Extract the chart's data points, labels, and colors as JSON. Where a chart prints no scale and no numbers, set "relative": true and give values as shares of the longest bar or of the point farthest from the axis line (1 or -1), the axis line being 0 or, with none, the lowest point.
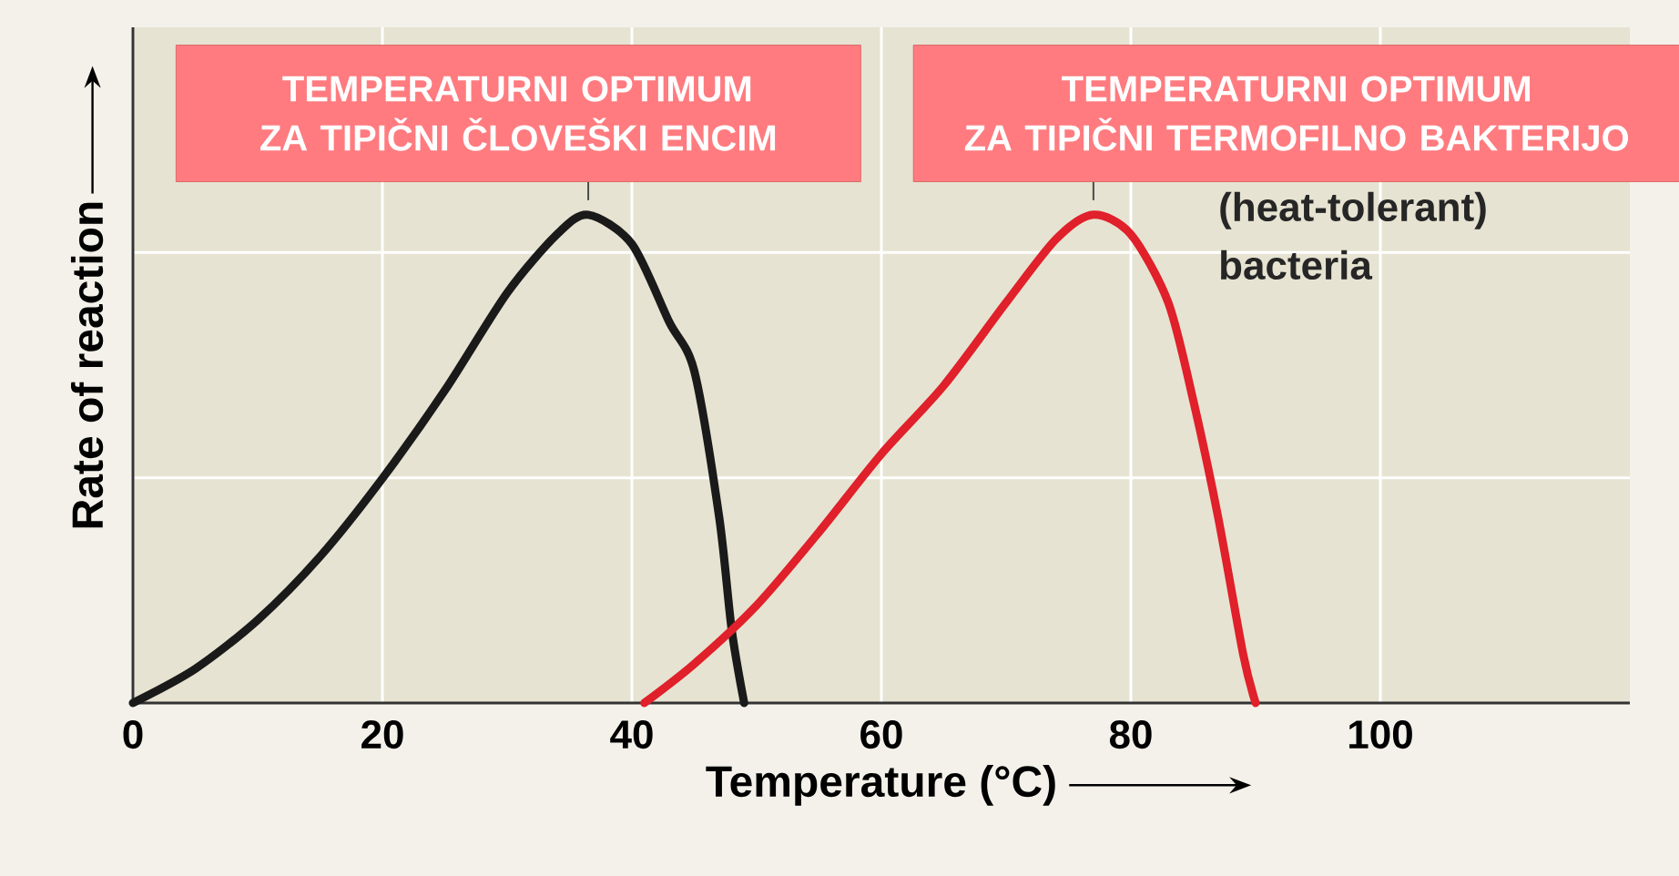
{
  "chart_data": {
    "type": "line",
    "xlabel": "Temperature (°C)",
    "ylabel": "Rate of reaction",
    "relative": true,
    "xlim": [
      0,
      120
    ],
    "xticks": [
      0,
      20,
      40,
      60,
      80,
      100
    ],
    "grid": true,
    "line_style": "solid",
    "series": [
      {
        "color": "#1a1a1a",
        "x": [
          0,
          5,
          10,
          15,
          20,
          25,
          30,
          34,
          36.5,
          40,
          43,
          45,
          47,
          48,
          49
        ],
        "values": [
          0,
          0.07,
          0.17,
          0.3,
          0.46,
          0.64,
          0.84,
          0.96,
          1,
          0.94,
          0.78,
          0.68,
          0.38,
          0.15,
          0
        ]
      },
      {
        "color": "#e0202a",
        "x": [
          41,
          45,
          50,
          55,
          60,
          65,
          70,
          74,
          77,
          80,
          83,
          85,
          87,
          89,
          90
        ],
        "values": [
          0,
          0.08,
          0.2,
          0.35,
          0.51,
          0.65,
          0.82,
          0.95,
          1,
          0.96,
          0.82,
          0.62,
          0.38,
          0.1,
          0
        ]
      }
    ],
    "annotations": [
      {
        "text": "TEMPERATURNI OPTIMUM ZA TIPIČNI ČLOVEŠKI ENCIM",
        "x": 36.5,
        "y": 1
      },
      {
        "text": "TEMPERATURNI OPTIMUM ZA TIPIČNI TERMOFILNO BAKTERIJO",
        "x": 77,
        "y": 1
      },
      "(heat-tolerant) bacteria"
    ]
  }
}
